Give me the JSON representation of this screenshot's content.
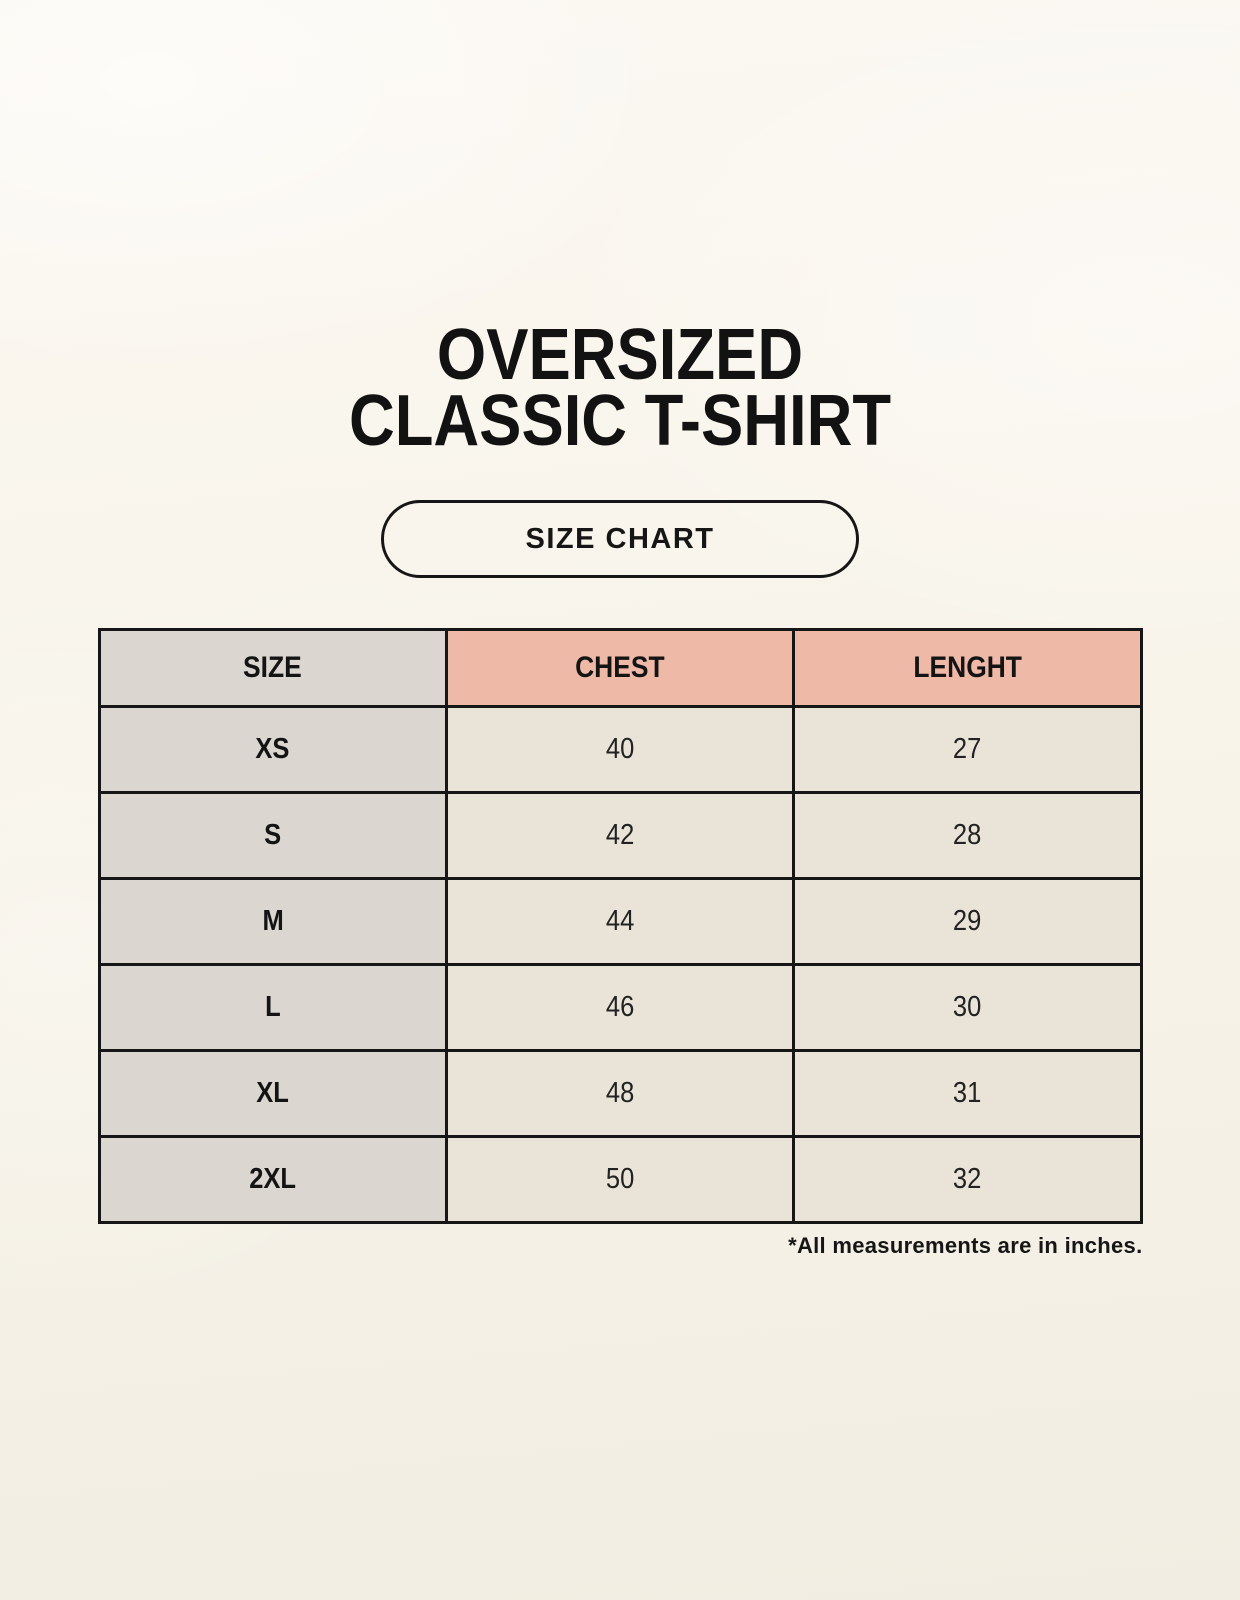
{
  "title": {
    "line1": "OVERSIZED",
    "line2": "CLASSIC T-SHIRT"
  },
  "size_chart_button_label": "SIZE CHART",
  "chart_data": {
    "type": "table",
    "title": "OVERSIZED CLASSIC T-SHIRT",
    "columns": [
      "SIZE",
      "CHEST",
      "LENGHT"
    ],
    "rows": [
      {
        "size": "XS",
        "chest": 40,
        "length": 27
      },
      {
        "size": "S",
        "chest": 42,
        "length": 28
      },
      {
        "size": "M",
        "chest": 44,
        "length": 29
      },
      {
        "size": "L",
        "chest": 46,
        "length": 30
      },
      {
        "size": "XL",
        "chest": 48,
        "length": 31
      },
      {
        "size": "2XL",
        "chest": 50,
        "length": 32
      }
    ],
    "units": "inches"
  },
  "footnote": "*All measurements are in inches.",
  "colors": {
    "page_background": "#f8f4ea",
    "header_pink": "#efb9a7",
    "cell_gray": "#dcd6d0",
    "cell_cream": "#eae3d8",
    "border_black": "#161616"
  }
}
